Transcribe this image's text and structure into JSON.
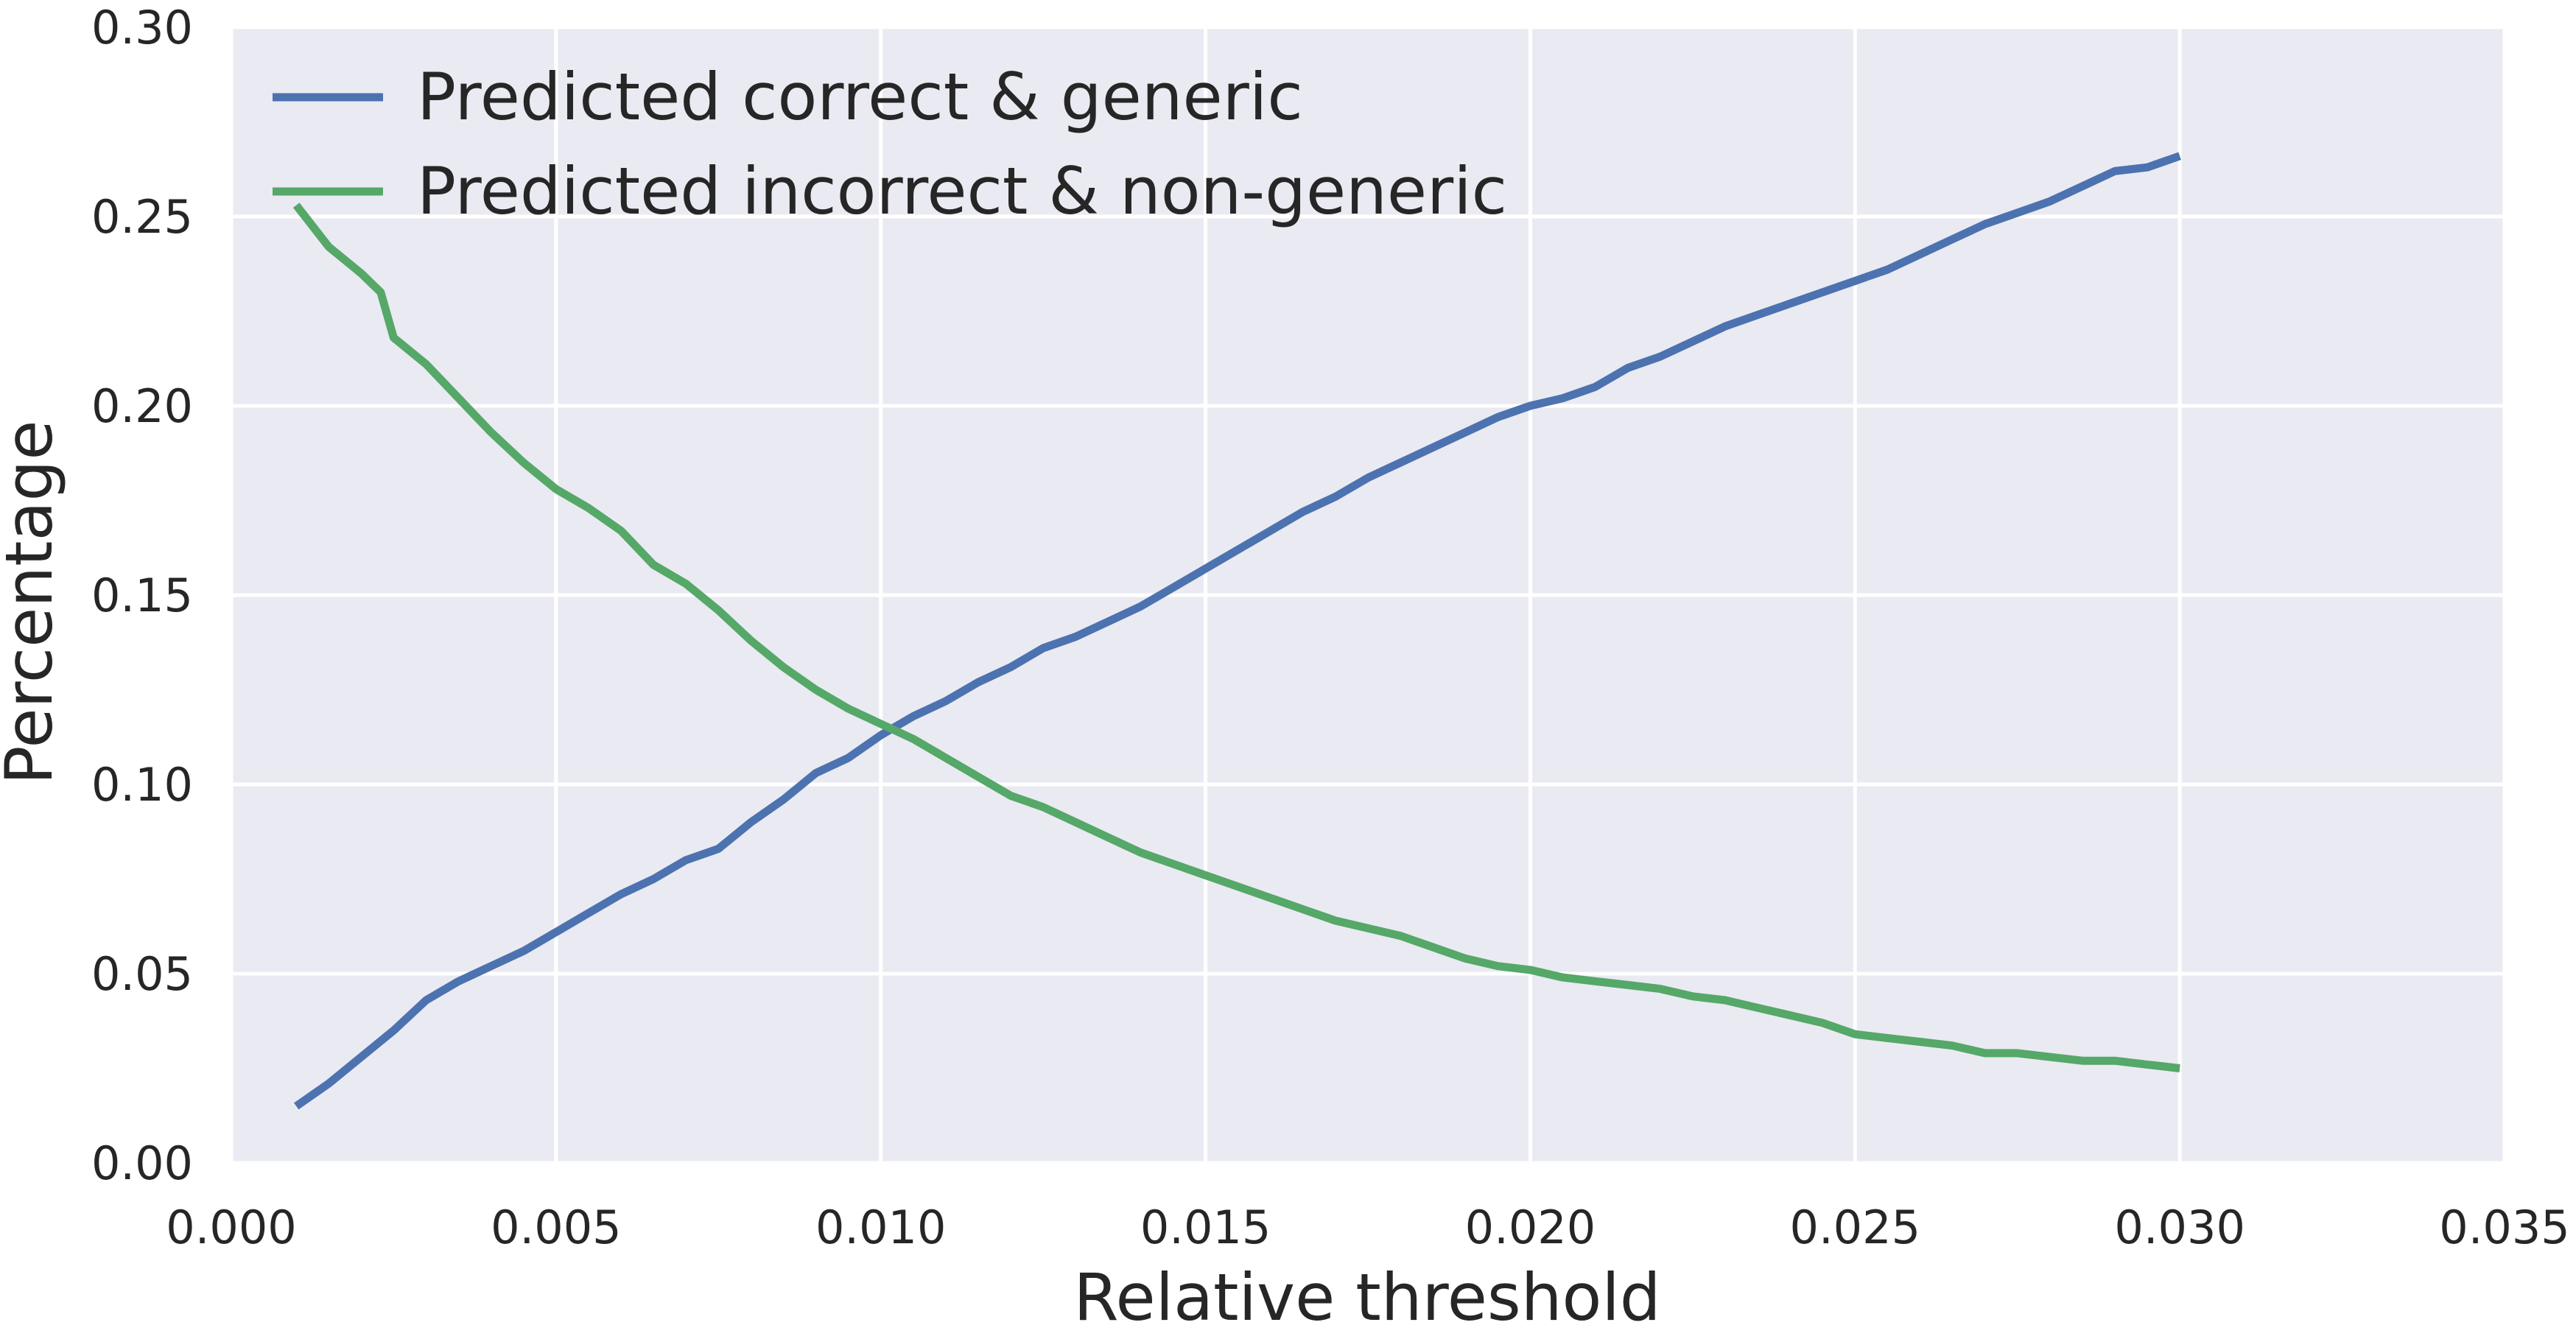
{
  "chart_data": {
    "type": "line",
    "title": "",
    "xlabel": "Relative threshold",
    "ylabel": "Percentage",
    "xlim": [
      0.0,
      0.035
    ],
    "ylim": [
      0.0,
      0.3
    ],
    "xticks": [
      "0.000",
      "0.005",
      "0.010",
      "0.015",
      "0.020",
      "0.025",
      "0.030",
      "0.035"
    ],
    "yticks": [
      "0.00",
      "0.05",
      "0.10",
      "0.15",
      "0.20",
      "0.25",
      "0.30"
    ],
    "grid": true,
    "background": "#eaeaf2",
    "legend_position": "top-left",
    "series": [
      {
        "name": "Predicted correct & generic",
        "color": "#4c72b0",
        "points": [
          [
            0.001,
            0.015
          ],
          [
            0.0015,
            0.021
          ],
          [
            0.002,
            0.028
          ],
          [
            0.0025,
            0.035
          ],
          [
            0.003,
            0.043
          ],
          [
            0.0035,
            0.048
          ],
          [
            0.004,
            0.052
          ],
          [
            0.0045,
            0.056
          ],
          [
            0.005,
            0.061
          ],
          [
            0.0055,
            0.066
          ],
          [
            0.006,
            0.071
          ],
          [
            0.0065,
            0.075
          ],
          [
            0.007,
            0.08
          ],
          [
            0.0075,
            0.083
          ],
          [
            0.008,
            0.09
          ],
          [
            0.0085,
            0.096
          ],
          [
            0.009,
            0.103
          ],
          [
            0.0095,
            0.107
          ],
          [
            0.01,
            0.113
          ],
          [
            0.0105,
            0.118
          ],
          [
            0.011,
            0.122
          ],
          [
            0.0115,
            0.127
          ],
          [
            0.012,
            0.131
          ],
          [
            0.0125,
            0.136
          ],
          [
            0.013,
            0.139
          ],
          [
            0.0135,
            0.143
          ],
          [
            0.014,
            0.147
          ],
          [
            0.0145,
            0.152
          ],
          [
            0.015,
            0.157
          ],
          [
            0.0155,
            0.162
          ],
          [
            0.016,
            0.167
          ],
          [
            0.0165,
            0.172
          ],
          [
            0.017,
            0.176
          ],
          [
            0.0175,
            0.181
          ],
          [
            0.018,
            0.185
          ],
          [
            0.0185,
            0.189
          ],
          [
            0.019,
            0.193
          ],
          [
            0.0195,
            0.197
          ],
          [
            0.02,
            0.2
          ],
          [
            0.0205,
            0.202
          ],
          [
            0.021,
            0.205
          ],
          [
            0.0215,
            0.21
          ],
          [
            0.022,
            0.213
          ],
          [
            0.0225,
            0.217
          ],
          [
            0.023,
            0.221
          ],
          [
            0.0235,
            0.224
          ],
          [
            0.024,
            0.227
          ],
          [
            0.0245,
            0.23
          ],
          [
            0.025,
            0.233
          ],
          [
            0.0255,
            0.236
          ],
          [
            0.026,
            0.24
          ],
          [
            0.0265,
            0.244
          ],
          [
            0.027,
            0.248
          ],
          [
            0.0275,
            0.251
          ],
          [
            0.028,
            0.254
          ],
          [
            0.0285,
            0.258
          ],
          [
            0.029,
            0.262
          ],
          [
            0.0295,
            0.263
          ],
          [
            0.03,
            0.266
          ]
        ]
      },
      {
        "name": "Predicted incorrect & non-generic",
        "color": "#55a868",
        "points": [
          [
            0.001,
            0.253
          ],
          [
            0.0015,
            0.242
          ],
          [
            0.002,
            0.235
          ],
          [
            0.0023,
            0.23
          ],
          [
            0.0025,
            0.218
          ],
          [
            0.003,
            0.211
          ],
          [
            0.0035,
            0.202
          ],
          [
            0.004,
            0.193
          ],
          [
            0.0045,
            0.185
          ],
          [
            0.005,
            0.178
          ],
          [
            0.0055,
            0.173
          ],
          [
            0.006,
            0.167
          ],
          [
            0.0065,
            0.158
          ],
          [
            0.007,
            0.153
          ],
          [
            0.0075,
            0.146
          ],
          [
            0.008,
            0.138
          ],
          [
            0.0085,
            0.131
          ],
          [
            0.009,
            0.125
          ],
          [
            0.0095,
            0.12
          ],
          [
            0.01,
            0.116
          ],
          [
            0.0105,
            0.112
          ],
          [
            0.011,
            0.107
          ],
          [
            0.0115,
            0.102
          ],
          [
            0.012,
            0.097
          ],
          [
            0.0125,
            0.094
          ],
          [
            0.013,
            0.09
          ],
          [
            0.0135,
            0.086
          ],
          [
            0.014,
            0.082
          ],
          [
            0.0145,
            0.079
          ],
          [
            0.015,
            0.076
          ],
          [
            0.0155,
            0.073
          ],
          [
            0.016,
            0.07
          ],
          [
            0.0165,
            0.067
          ],
          [
            0.017,
            0.064
          ],
          [
            0.0175,
            0.062
          ],
          [
            0.018,
            0.06
          ],
          [
            0.0185,
            0.057
          ],
          [
            0.019,
            0.054
          ],
          [
            0.0195,
            0.052
          ],
          [
            0.02,
            0.051
          ],
          [
            0.0205,
            0.049
          ],
          [
            0.021,
            0.048
          ],
          [
            0.0215,
            0.047
          ],
          [
            0.022,
            0.046
          ],
          [
            0.0225,
            0.044
          ],
          [
            0.023,
            0.043
          ],
          [
            0.0235,
            0.041
          ],
          [
            0.024,
            0.039
          ],
          [
            0.0245,
            0.037
          ],
          [
            0.025,
            0.034
          ],
          [
            0.0255,
            0.033
          ],
          [
            0.026,
            0.032
          ],
          [
            0.0265,
            0.031
          ],
          [
            0.027,
            0.029
          ],
          [
            0.0275,
            0.029
          ],
          [
            0.028,
            0.028
          ],
          [
            0.0285,
            0.027
          ],
          [
            0.029,
            0.027
          ],
          [
            0.0295,
            0.026
          ],
          [
            0.03,
            0.025
          ]
        ]
      }
    ]
  }
}
